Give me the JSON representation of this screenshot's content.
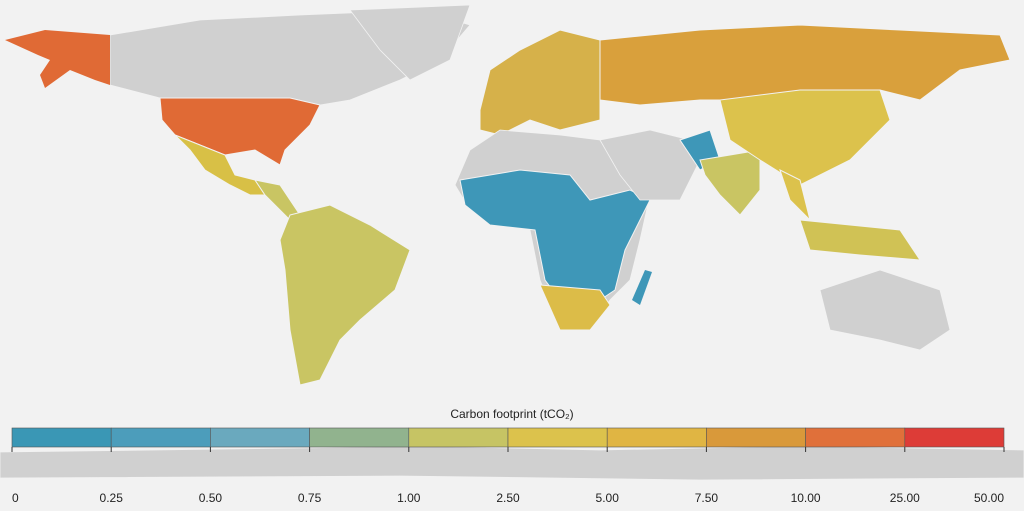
{
  "legend": {
    "title": "Carbon footprint (tCO₂)",
    "ticks": [
      "0",
      "0.25",
      "0.50",
      "0.75",
      "1.00",
      "2.50",
      "5.00",
      "7.50",
      "10.00",
      "25.00",
      "50.00"
    ],
    "colors": [
      "#3a97b5",
      "#4c9dbb",
      "#6aa9be",
      "#91b38e",
      "#c6c464",
      "#dcc24c",
      "#e0b543",
      "#d9993a",
      "#e0703a",
      "#dd3c37"
    ]
  }
}
